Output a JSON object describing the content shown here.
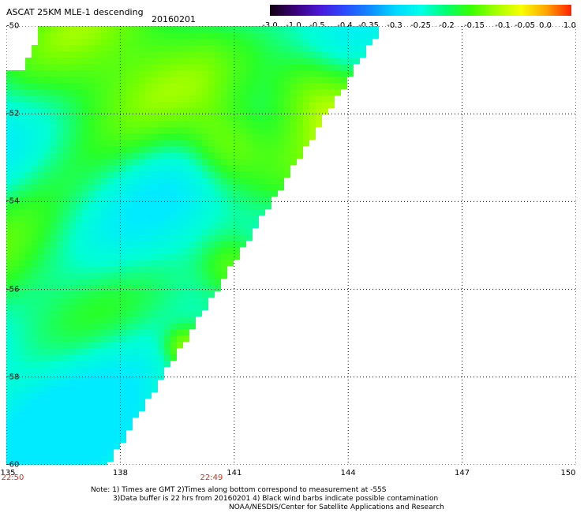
{
  "title": "ASCAT 25KM MLE-1 descending",
  "date": "20160201",
  "color_scale": {
    "labels": [
      "-3.0",
      "-1.0",
      "-0.5",
      "-0.4",
      "-0.35",
      "-0.3",
      "-0.25",
      "-0.2",
      "-0.15",
      "-0.1",
      "-0.05",
      "0.0",
      "1.0"
    ],
    "colors": [
      "#120010",
      "#3a0078",
      "#4a18d8",
      "#2a4cff",
      "#0e8cff",
      "#00d8ff",
      "#00ffe8",
      "#00ff70",
      "#38ff00",
      "#a4ff00",
      "#f8ff00",
      "#ffa400",
      "#ff2000"
    ]
  },
  "map": {
    "lat_labels": [
      "-50",
      "-52",
      "-54",
      "-56",
      "-58",
      "-60"
    ],
    "lon_labels": [
      "135",
      "138",
      "141",
      "144",
      "147",
      "150"
    ],
    "lat_range": [
      -60,
      -50
    ],
    "lon_range": [
      135,
      150
    ],
    "times": [
      {
        "label": "22:50",
        "lon": 135
      },
      {
        "label": "22:49",
        "lon": 140.4
      }
    ]
  },
  "notes": [
    "Note: 1) Times are GMT 2)Times along bottom correspond to measurement at -55S",
    "3)Data buffer is 22 hrs from 20160201 4) Black wind barbs indicate possible contamination",
    "NOAA/NESDIS/Center for Satellite Applications and Research"
  ]
}
